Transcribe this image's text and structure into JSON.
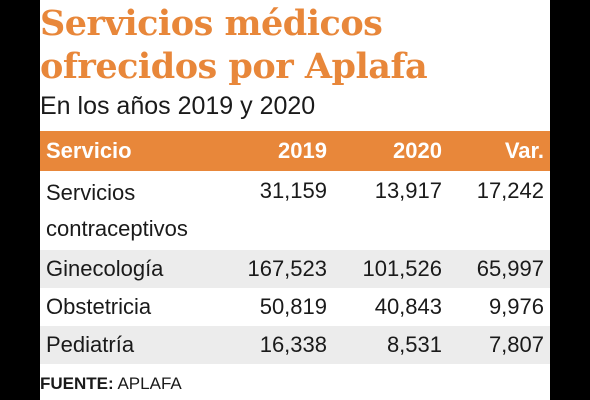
{
  "chart_data": {
    "type": "table",
    "title": "Servicios médicos ofrecidos por Aplafa",
    "title_lines": [
      "Servicios médicos",
      "ofrecidos por Aplafa"
    ],
    "subtitle": "En los años 2019 y 2020",
    "columns": [
      "Servicio",
      "2019",
      "2020",
      "Var."
    ],
    "rows": [
      {
        "servicio": "Servicios contraceptivos",
        "v2019": "31,159",
        "v2020": "13,917",
        "var": "17,242"
      },
      {
        "servicio": "Ginecología",
        "v2019": "167,523",
        "v2020": "101,526",
        "var": "65,997"
      },
      {
        "servicio": "Obstetricia",
        "v2019": "50,819",
        "v2020": "40,843",
        "var": "9,976"
      },
      {
        "servicio": "Pediatría",
        "v2019": "16,338",
        "v2020": "8,531",
        "var": "7,807"
      }
    ],
    "values": {
      "2019": [
        31159,
        167523,
        50819,
        16338
      ],
      "2020": [
        13917,
        101526,
        40843,
        8531
      ],
      "Var.": [
        17242,
        65997,
        9976,
        7807
      ]
    },
    "source_label": "FUENTE:",
    "source_value": "APLAFA"
  },
  "colors": {
    "accent": "#e8873a",
    "header_text": "#ffffff",
    "row_shade": "#ececec",
    "text": "#1a1a1a",
    "frame": "#000000"
  }
}
